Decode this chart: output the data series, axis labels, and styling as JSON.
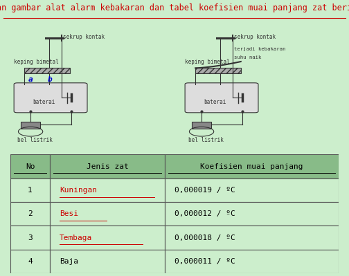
{
  "bg_color": "#cceecc",
  "title": "Perhatikan gambar alat alarm kebakaran dan tabel koefisien muai panjang zat berikut ini!",
  "title_color": "#cc0000",
  "title_fontsize": 8.5,
  "table_header_bg": "#88bb88",
  "table_row_bg": "#cceecc",
  "table_border_color": "#555555",
  "col_headers": [
    "No",
    "Jenis zat",
    "Koefisien muai panjang"
  ],
  "rows": [
    [
      "1",
      "Kuningan",
      "0,000019 / ºC"
    ],
    [
      "2",
      "Besi",
      "0,000012 / ºC"
    ],
    [
      "3",
      "Tembaga",
      "0,000018 / ºC"
    ],
    [
      "4",
      "Baja",
      "0,000011 / ºC"
    ]
  ],
  "jenis_zat_colors": [
    "#cc0000",
    "#cc0000",
    "#cc0000",
    "#000000"
  ],
  "jenis_zat_underline": [
    true,
    true,
    true,
    false
  ],
  "dark": "#333333"
}
